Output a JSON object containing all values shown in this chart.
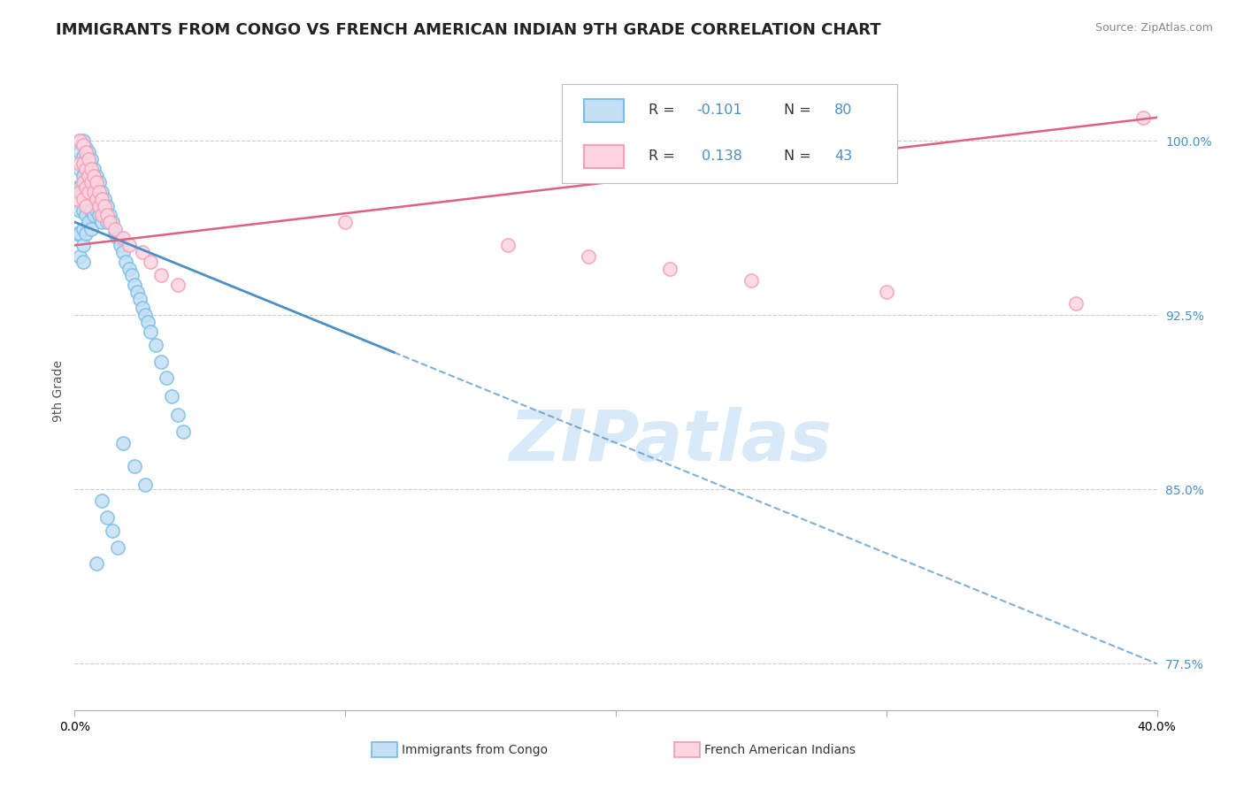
{
  "title": "IMMIGRANTS FROM CONGO VS FRENCH AMERICAN INDIAN 9TH GRADE CORRELATION CHART",
  "source": "Source: ZipAtlas.com",
  "ylabel": "9th Grade",
  "x_min": 0.0,
  "x_max": 0.4,
  "y_min": 0.755,
  "y_max": 1.03,
  "x_ticks": [
    0.0,
    0.1,
    0.2,
    0.3,
    0.4
  ],
  "x_tick_labels": [
    "0.0%",
    "",
    "",
    "",
    "40.0%"
  ],
  "y_ticks": [
    0.775,
    0.85,
    0.925,
    1.0
  ],
  "y_tick_labels": [
    "77.5%",
    "85.0%",
    "92.5%",
    "100.0%"
  ],
  "legend_labels": [
    "Immigrants from Congo",
    "French American Indians"
  ],
  "blue_color": "#7bbfe8",
  "pink_color": "#f4a0b8",
  "blue_fill": "#c5dff5",
  "pink_fill": "#fcd5df",
  "trend_blue_color": "#4a90c4",
  "trend_pink_color": "#e06080",
  "watermark_color": "#d8eaf8",
  "title_fontsize": 13,
  "axis_label_fontsize": 10,
  "tick_fontsize": 10,
  "blue_scatter_x": [
    0.001,
    0.001,
    0.002,
    0.002,
    0.002,
    0.002,
    0.002,
    0.002,
    0.002,
    0.003,
    0.003,
    0.003,
    0.003,
    0.003,
    0.003,
    0.003,
    0.003,
    0.004,
    0.004,
    0.004,
    0.004,
    0.004,
    0.004,
    0.005,
    0.005,
    0.005,
    0.005,
    0.005,
    0.006,
    0.006,
    0.006,
    0.006,
    0.006,
    0.007,
    0.007,
    0.007,
    0.007,
    0.008,
    0.008,
    0.008,
    0.009,
    0.009,
    0.009,
    0.01,
    0.01,
    0.01,
    0.011,
    0.011,
    0.012,
    0.012,
    0.013,
    0.014,
    0.015,
    0.016,
    0.017,
    0.018,
    0.019,
    0.02,
    0.021,
    0.022,
    0.023,
    0.024,
    0.025,
    0.026,
    0.027,
    0.028,
    0.03,
    0.032,
    0.034,
    0.036,
    0.038,
    0.04,
    0.018,
    0.022,
    0.026,
    0.01,
    0.012,
    0.014,
    0.016,
    0.008
  ],
  "blue_scatter_y": [
    0.98,
    0.96,
    1.0,
    0.995,
    0.988,
    0.98,
    0.97,
    0.96,
    0.95,
    1.0,
    0.993,
    0.985,
    0.978,
    0.97,
    0.962,
    0.955,
    0.948,
    0.997,
    0.99,
    0.982,
    0.975,
    0.968,
    0.96,
    0.995,
    0.988,
    0.98,
    0.972,
    0.965,
    0.992,
    0.985,
    0.978,
    0.97,
    0.962,
    0.988,
    0.982,
    0.975,
    0.968,
    0.985,
    0.978,
    0.97,
    0.982,
    0.975,
    0.968,
    0.978,
    0.972,
    0.965,
    0.975,
    0.968,
    0.972,
    0.965,
    0.968,
    0.965,
    0.96,
    0.958,
    0.955,
    0.952,
    0.948,
    0.945,
    0.942,
    0.938,
    0.935,
    0.932,
    0.928,
    0.925,
    0.922,
    0.918,
    0.912,
    0.905,
    0.898,
    0.89,
    0.882,
    0.875,
    0.87,
    0.86,
    0.852,
    0.845,
    0.838,
    0.832,
    0.825,
    0.818
  ],
  "pink_scatter_x": [
    0.001,
    0.002,
    0.002,
    0.002,
    0.003,
    0.003,
    0.003,
    0.003,
    0.004,
    0.004,
    0.004,
    0.004,
    0.005,
    0.005,
    0.005,
    0.006,
    0.006,
    0.007,
    0.007,
    0.008,
    0.008,
    0.009,
    0.009,
    0.01,
    0.01,
    0.011,
    0.012,
    0.013,
    0.015,
    0.018,
    0.02,
    0.025,
    0.028,
    0.032,
    0.038,
    0.1,
    0.16,
    0.19,
    0.22,
    0.25,
    0.3,
    0.37,
    0.395
  ],
  "pink_scatter_y": [
    0.975,
    1.0,
    0.99,
    0.978,
    0.998,
    0.99,
    0.982,
    0.975,
    0.995,
    0.988,
    0.98,
    0.972,
    0.992,
    0.985,
    0.978,
    0.988,
    0.982,
    0.985,
    0.978,
    0.982,
    0.975,
    0.978,
    0.972,
    0.975,
    0.968,
    0.972,
    0.968,
    0.965,
    0.962,
    0.958,
    0.955,
    0.952,
    0.948,
    0.942,
    0.938,
    0.965,
    0.955,
    0.95,
    0.945,
    0.94,
    0.935,
    0.93,
    1.01
  ],
  "blue_trend_x": [
    0.0,
    0.118,
    0.4
  ],
  "blue_trend_y": [
    0.965,
    0.913,
    0.775
  ],
  "blue_trend_solid_end": 0.118,
  "pink_trend_x": [
    0.0,
    0.4
  ],
  "pink_trend_y": [
    0.955,
    1.01
  ]
}
